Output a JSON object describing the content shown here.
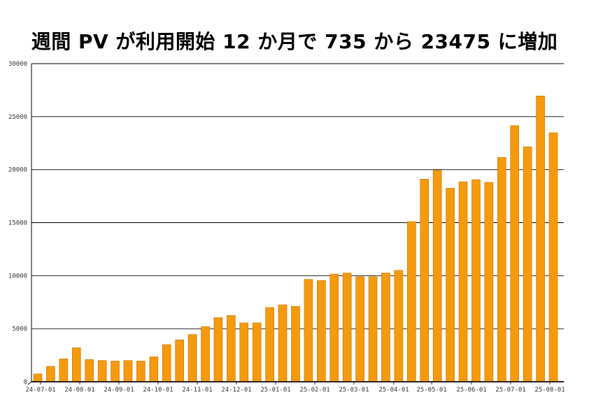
{
  "chart_data": {
    "type": "bar",
    "title": "週間 PV が利用開始 12 か月で 735 から 23475 に増加",
    "xlabel": "",
    "ylabel": "",
    "ylim": [
      0,
      30000
    ],
    "yticks": [
      "0",
      "5000",
      "10000",
      "15000",
      "20000",
      "25000",
      "30000"
    ],
    "xtick_labels": [
      "24-07-01",
      "24-08-01",
      "24-09-01",
      "24-10-01",
      "24-11-01",
      "24-12-01",
      "25-01-01",
      "25-02-01",
      "25-03-01",
      "25-04-01",
      "25-05-01",
      "25-06-01",
      "25-07-01",
      "25-08-01"
    ],
    "grid": true,
    "bar_color": "#f49a0c",
    "bar_edge_color": "#c66f00",
    "series": [
      {
        "values": [
          735,
          1450,
          2150,
          3200,
          2100,
          2000,
          1950,
          2000,
          1950,
          2350,
          3500,
          3950,
          4450,
          5200,
          6050,
          6250,
          5550,
          5550,
          7000,
          7250,
          7100,
          9650,
          9550,
          10150,
          10250,
          9900,
          9900,
          10250,
          10500,
          15100,
          19100,
          19950,
          18250,
          18850,
          19050,
          18800,
          21150,
          24150,
          22150,
          26950,
          23475
        ]
      }
    ]
  }
}
